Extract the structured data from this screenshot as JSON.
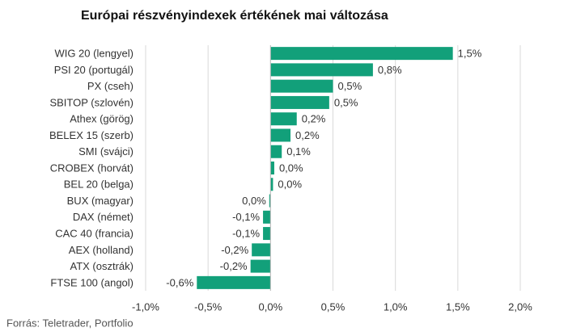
{
  "chart_data": {
    "type": "hbar",
    "title": "Európai részvényindexek értékének mai változása",
    "categories": [
      "WIG 20 (lengyel)",
      "PSI 20 (portugál)",
      "PX (cseh)",
      "SBITOP (szlovén)",
      "Athex (görög)",
      "BELEX 15 (szerb)",
      "SMI (svájci)",
      "CROBEX (horvát)",
      "BEL 20 (belga)",
      "BUX (magyar)",
      "DAX (német)",
      "CAC 40 (francia)",
      "AEX (holland)",
      "ATX (osztrák)",
      "FTSE 100 (angol)"
    ],
    "values": [
      1.46,
      0.82,
      0.5,
      0.47,
      0.21,
      0.16,
      0.09,
      0.03,
      0.02,
      -0.01,
      -0.06,
      -0.06,
      -0.15,
      -0.16,
      -0.59
    ],
    "value_labels": [
      "1,5%",
      "0,8%",
      "0,5%",
      "0,5%",
      "0,2%",
      "0,2%",
      "0,1%",
      "0,0%",
      "0,0%",
      "0,0%",
      "-0,1%",
      "-0,1%",
      "-0,2%",
      "-0,2%",
      "-0,6%"
    ],
    "color": "#12a07a",
    "xlim": [
      -1,
      2
    ],
    "xticks": [
      {
        "value": -1,
        "label": "-1,0%"
      },
      {
        "value": -0.5,
        "label": "-0,5%"
      },
      {
        "value": 0,
        "label": "0,0%"
      },
      {
        "value": 0.5,
        "label": "0,5%"
      },
      {
        "value": 1,
        "label": "1,0%"
      },
      {
        "value": 1.5,
        "label": "1,5%"
      },
      {
        "value": 2,
        "label": "2,0%"
      }
    ],
    "grid": true,
    "source": "Forrás: Teletrader, Portfolio"
  }
}
